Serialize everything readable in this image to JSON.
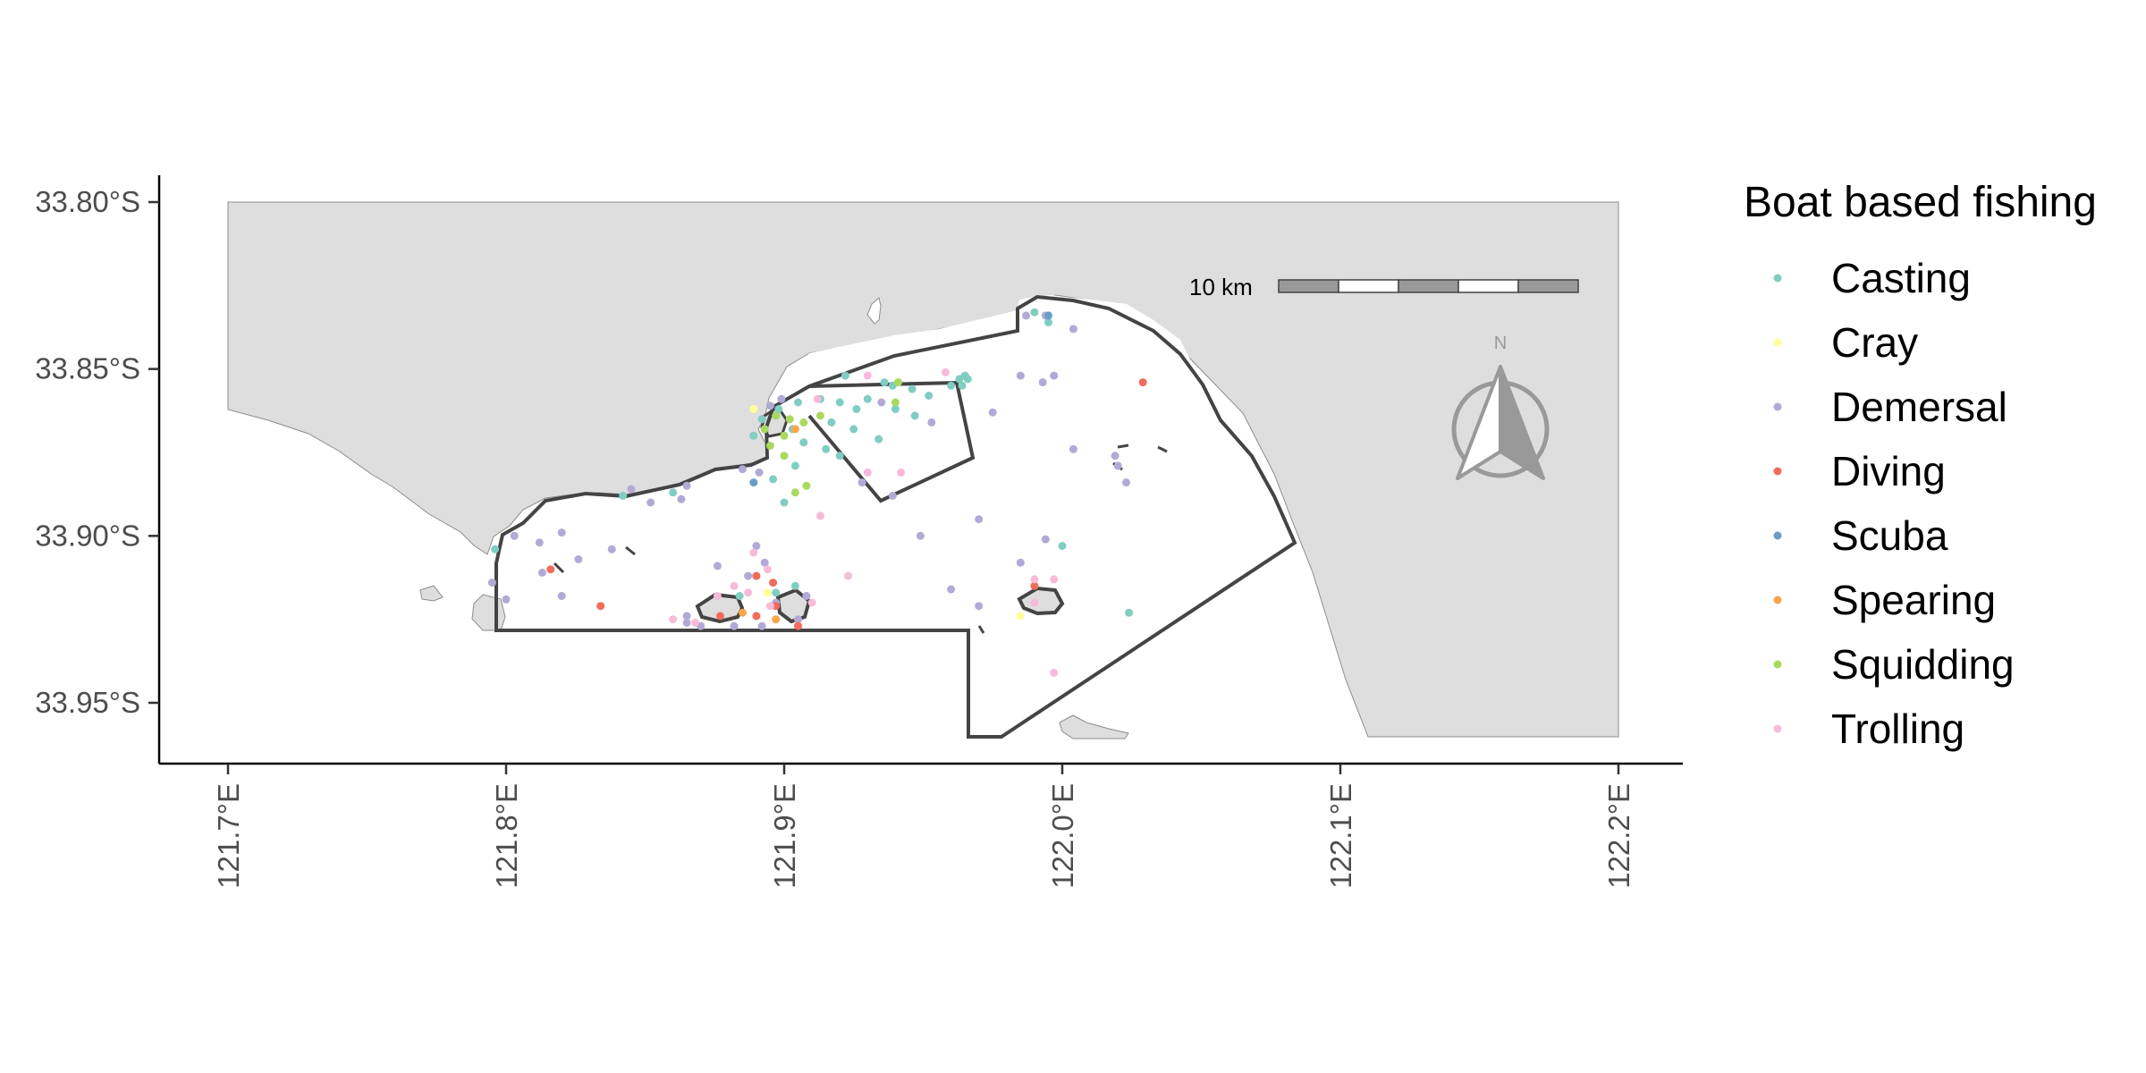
{
  "axes": {
    "y_ticks": [
      {
        "value": -33.8,
        "label": "33.80°S"
      },
      {
        "value": -33.85,
        "label": "33.85°S"
      },
      {
        "value": -33.9,
        "label": "33.90°S"
      },
      {
        "value": -33.95,
        "label": "33.95°S"
      }
    ],
    "x_ticks": [
      {
        "value": 121.7,
        "label": "121.7°E"
      },
      {
        "value": 121.8,
        "label": "121.8°E"
      },
      {
        "value": 121.9,
        "label": "121.9°E"
      },
      {
        "value": 122.0,
        "label": "122.0°E"
      },
      {
        "value": 122.1,
        "label": "122.1°E"
      },
      {
        "value": 122.2,
        "label": "122.2°E"
      }
    ],
    "xlim": [
      121.675,
      122.225
    ],
    "ylim": [
      -33.9675,
      -33.7925
    ]
  },
  "legend": {
    "title": "Boat based fishing",
    "items": [
      {
        "label": "Casting",
        "color": "#80cdc1"
      },
      {
        "label": "Cray",
        "color": "#ffff99"
      },
      {
        "label": "Demersal",
        "color": "#b3a9d6"
      },
      {
        "label": "Diving",
        "color": "#f26b5b"
      },
      {
        "label": "Scuba",
        "color": "#6a9ec6"
      },
      {
        "label": "Spearing",
        "color": "#f9a54a"
      },
      {
        "label": "Squidding",
        "color": "#a9d95e"
      },
      {
        "label": "Trolling",
        "color": "#f7bbd9"
      }
    ]
  },
  "scale_bar": {
    "label": "10 km"
  },
  "north_arrow": {
    "label": "N"
  },
  "colors": {
    "land": "#dedede",
    "boundary": "#444444",
    "axis": "#000000"
  },
  "chart_data": {
    "type": "scatter",
    "xlabel": "",
    "ylabel": "",
    "xlim": [
      121.675,
      122.225
    ],
    "ylim": [
      -33.9675,
      -33.7925
    ],
    "series": [
      {
        "name": "Casting",
        "points": [
          [
            121.936,
            -33.854
          ],
          [
            121.939,
            -33.855
          ],
          [
            121.946,
            -33.856
          ],
          [
            121.93,
            -33.859
          ],
          [
            121.92,
            -33.86
          ],
          [
            121.913,
            -33.859
          ],
          [
            121.917,
            -33.866
          ],
          [
            121.926,
            -33.862
          ],
          [
            121.925,
            -33.868
          ],
          [
            121.934,
            -33.871
          ],
          [
            121.94,
            -33.862
          ],
          [
            121.947,
            -33.864
          ],
          [
            121.952,
            -33.858
          ],
          [
            121.96,
            -33.855
          ],
          [
            121.963,
            -33.853
          ],
          [
            121.965,
            -33.852
          ],
          [
            121.966,
            -33.853
          ],
          [
            121.964,
            -33.855
          ],
          [
            121.903,
            -33.868
          ],
          [
            121.907,
            -33.872
          ],
          [
            121.915,
            -33.874
          ],
          [
            121.92,
            -33.876
          ],
          [
            121.904,
            -33.879
          ],
          [
            121.898,
            -33.862
          ],
          [
            121.905,
            -33.86
          ],
          [
            121.889,
            -33.87
          ],
          [
            121.896,
            -33.883
          ],
          [
            121.9,
            -33.89
          ],
          [
            121.922,
            -33.852
          ],
          [
            121.99,
            -33.833
          ],
          [
            121.995,
            -33.836
          ],
          [
            122.0,
            -33.903
          ],
          [
            122.024,
            -33.923
          ],
          [
            121.842,
            -33.888
          ],
          [
            121.86,
            -33.887
          ],
          [
            121.897,
            -33.917
          ],
          [
            121.904,
            -33.915
          ],
          [
            121.884,
            -33.918
          ],
          [
            121.796,
            -33.904
          ],
          [
            121.892,
            -33.865
          ]
        ]
      },
      {
        "name": "Cray",
        "points": [
          [
            121.889,
            -33.862
          ],
          [
            121.985,
            -33.924
          ],
          [
            121.894,
            -33.917
          ]
        ]
      },
      {
        "name": "Demersal",
        "points": [
          [
            121.987,
            -33.834
          ],
          [
            121.994,
            -33.834
          ],
          [
            122.004,
            -33.838
          ],
          [
            121.985,
            -33.852
          ],
          [
            121.993,
            -33.854
          ],
          [
            121.997,
            -33.852
          ],
          [
            122.004,
            -33.874
          ],
          [
            122.02,
            -33.879
          ],
          [
            122.023,
            -33.884
          ],
          [
            122.019,
            -33.876
          ],
          [
            121.975,
            -33.863
          ],
          [
            121.899,
            -33.859
          ],
          [
            121.895,
            -33.861
          ],
          [
            121.885,
            -33.88
          ],
          [
            121.891,
            -33.881
          ],
          [
            121.865,
            -33.885
          ],
          [
            121.863,
            -33.889
          ],
          [
            121.852,
            -33.89
          ],
          [
            121.845,
            -33.886
          ],
          [
            121.82,
            -33.899
          ],
          [
            121.812,
            -33.902
          ],
          [
            121.803,
            -33.9
          ],
          [
            121.813,
            -33.911
          ],
          [
            121.82,
            -33.918
          ],
          [
            121.8,
            -33.919
          ],
          [
            121.795,
            -33.914
          ],
          [
            121.838,
            -33.904
          ],
          [
            121.826,
            -33.907
          ],
          [
            121.865,
            -33.924
          ],
          [
            121.876,
            -33.909
          ],
          [
            121.89,
            -33.903
          ],
          [
            121.887,
            -33.912
          ],
          [
            121.893,
            -33.908
          ],
          [
            121.892,
            -33.927
          ],
          [
            121.882,
            -33.927
          ],
          [
            121.87,
            -33.927
          ],
          [
            121.865,
            -33.926
          ],
          [
            121.908,
            -33.918
          ],
          [
            121.96,
            -33.916
          ],
          [
            121.928,
            -33.884
          ],
          [
            121.939,
            -33.888
          ],
          [
            121.949,
            -33.9
          ],
          [
            121.985,
            -33.908
          ],
          [
            121.994,
            -33.901
          ],
          [
            121.97,
            -33.921
          ],
          [
            121.97,
            -33.895
          ],
          [
            121.953,
            -33.866
          ],
          [
            121.935,
            -33.86
          ],
          [
            121.897,
            -33.92
          ],
          [
            121.905,
            -33.925
          ]
        ]
      },
      {
        "name": "Diving",
        "points": [
          [
            122.029,
            -33.854
          ],
          [
            121.89,
            -33.912
          ],
          [
            121.896,
            -33.914
          ],
          [
            121.877,
            -33.924
          ],
          [
            121.905,
            -33.927
          ],
          [
            121.89,
            -33.924
          ],
          [
            121.99,
            -33.915
          ],
          [
            121.816,
            -33.91
          ],
          [
            121.834,
            -33.921
          ],
          [
            121.897,
            -33.921
          ]
        ]
      },
      {
        "name": "Scuba",
        "points": [
          [
            121.995,
            -33.834
          ],
          [
            121.889,
            -33.884
          ]
        ]
      },
      {
        "name": "Spearing",
        "points": [
          [
            121.885,
            -33.923
          ],
          [
            121.897,
            -33.925
          ],
          [
            121.904,
            -33.868
          ]
        ]
      },
      {
        "name": "Squidding",
        "points": [
          [
            121.897,
            -33.864
          ],
          [
            121.902,
            -33.865
          ],
          [
            121.907,
            -33.866
          ],
          [
            121.893,
            -33.868
          ],
          [
            121.9,
            -33.87
          ],
          [
            121.904,
            -33.887
          ],
          [
            121.908,
            -33.885
          ],
          [
            121.913,
            -33.864
          ],
          [
            121.94,
            -33.86
          ],
          [
            121.941,
            -33.854
          ],
          [
            121.895,
            -33.873
          ],
          [
            121.9,
            -33.876
          ]
        ]
      },
      {
        "name": "Trolling",
        "points": [
          [
            121.912,
            -33.859
          ],
          [
            121.93,
            -33.852
          ],
          [
            121.958,
            -33.851
          ],
          [
            121.942,
            -33.881
          ],
          [
            121.93,
            -33.881
          ],
          [
            121.913,
            -33.894
          ],
          [
            121.923,
            -33.912
          ],
          [
            121.894,
            -33.91
          ],
          [
            121.887,
            -33.917
          ],
          [
            121.876,
            -33.918
          ],
          [
            121.868,
            -33.926
          ],
          [
            121.99,
            -33.913
          ],
          [
            121.997,
            -33.913
          ],
          [
            121.997,
            -33.941
          ],
          [
            121.895,
            -33.921
          ],
          [
            121.91,
            -33.92
          ],
          [
            121.86,
            -33.925
          ],
          [
            121.889,
            -33.905
          ],
          [
            121.99,
            -33.92
          ],
          [
            121.882,
            -33.915
          ]
        ]
      }
    ]
  }
}
